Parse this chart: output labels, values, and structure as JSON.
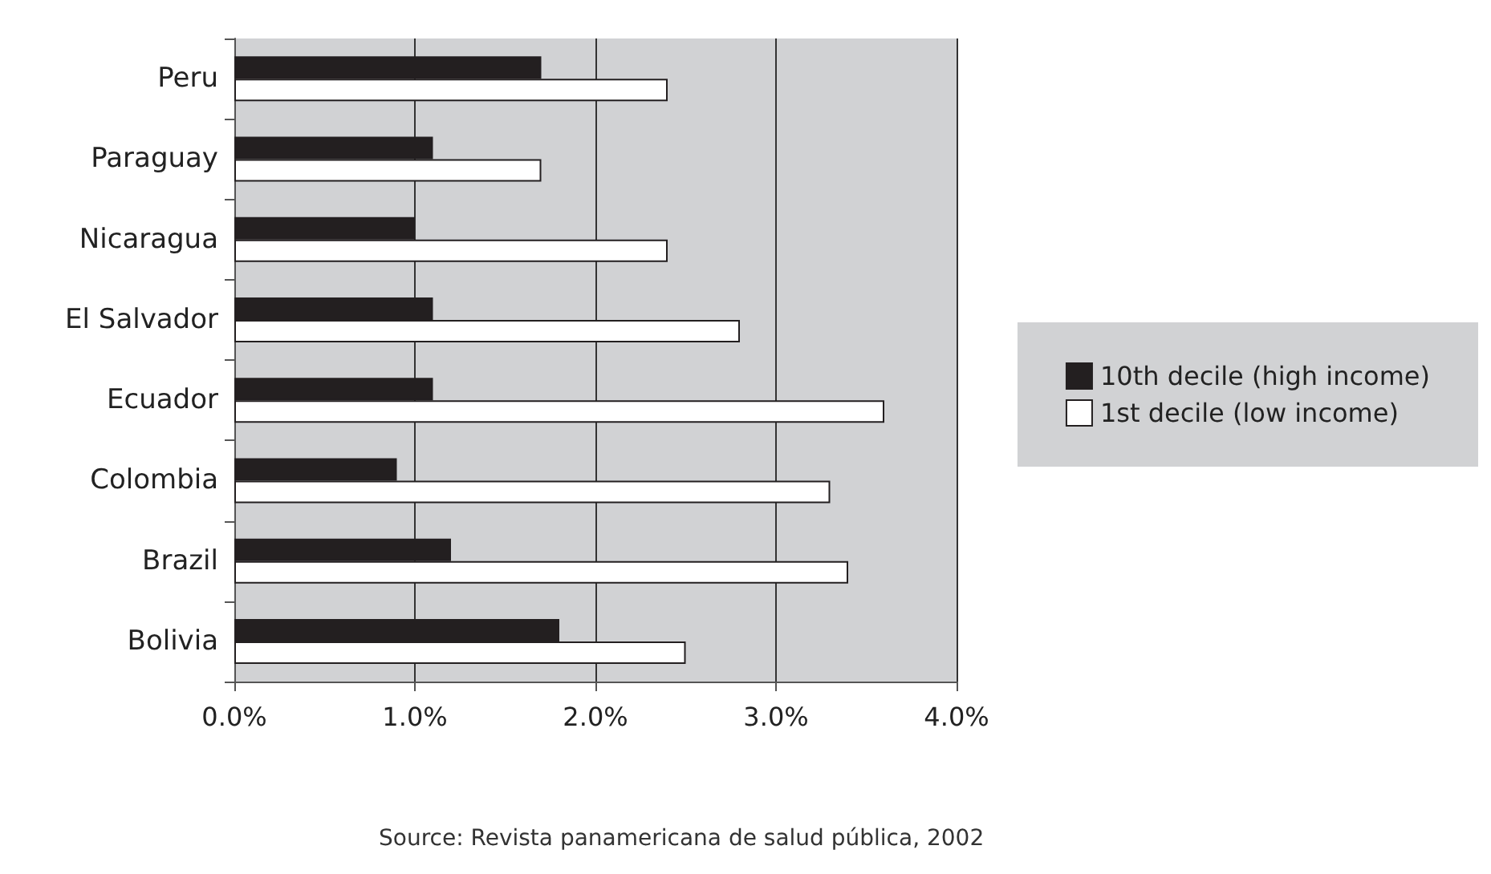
{
  "chart_data": {
    "type": "bar",
    "orientation": "horizontal",
    "categories": [
      "Peru",
      "Paraguay",
      "Nicaragua",
      "El Salvador",
      "Ecuador",
      "Colombia",
      "Brazil",
      "Bolivia"
    ],
    "series": [
      {
        "name": "10th decile (high income)",
        "color": "#231f20",
        "values": [
          1.7,
          1.1,
          1.0,
          1.1,
          1.1,
          0.9,
          1.2,
          1.8
        ]
      },
      {
        "name": "1st decile (low income)",
        "color": "#ffffff",
        "values": [
          2.4,
          1.7,
          2.4,
          2.8,
          3.6,
          3.3,
          3.4,
          2.5
        ]
      }
    ],
    "xlim": [
      0,
      4
    ],
    "xticks": [
      {
        "value": 0,
        "label": "0.0%"
      },
      {
        "value": 1,
        "label": "1.0%"
      },
      {
        "value": 2,
        "label": "2.0%"
      },
      {
        "value": 3,
        "label": "3.0%"
      },
      {
        "value": 4,
        "label": "4.0%"
      }
    ],
    "grid": "x",
    "legend": "right",
    "annotations": [
      "Source: Revista panamericana de salud pública, 2002"
    ]
  }
}
